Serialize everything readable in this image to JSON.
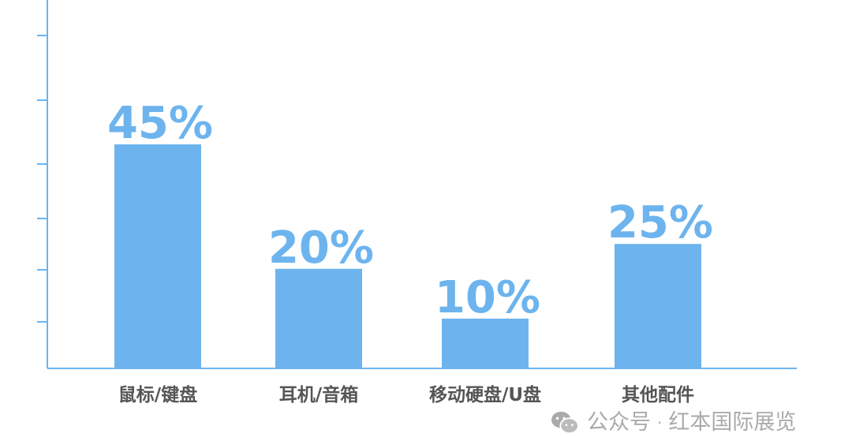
{
  "chart_data": {
    "type": "bar",
    "title": "",
    "xlabel": "",
    "ylabel": "",
    "categories": [
      "鼠标/键盘",
      "耳机/音箱",
      "移动硬盘/U盘",
      "其他配件"
    ],
    "values": [
      45,
      20,
      10,
      25
    ],
    "data_labels": [
      "45%",
      "20%",
      "10%",
      "25%"
    ],
    "ylim": [
      0,
      74
    ],
    "grid": false,
    "y_tick_labels_shown": false,
    "bar_color": "#6db4ee",
    "axis_color": "#6db4ee",
    "category_label_color": "#555555"
  },
  "watermark": {
    "icon": "wechat-icon",
    "prefix": "公众号",
    "separator": "·",
    "name": "红本国际展览"
  }
}
